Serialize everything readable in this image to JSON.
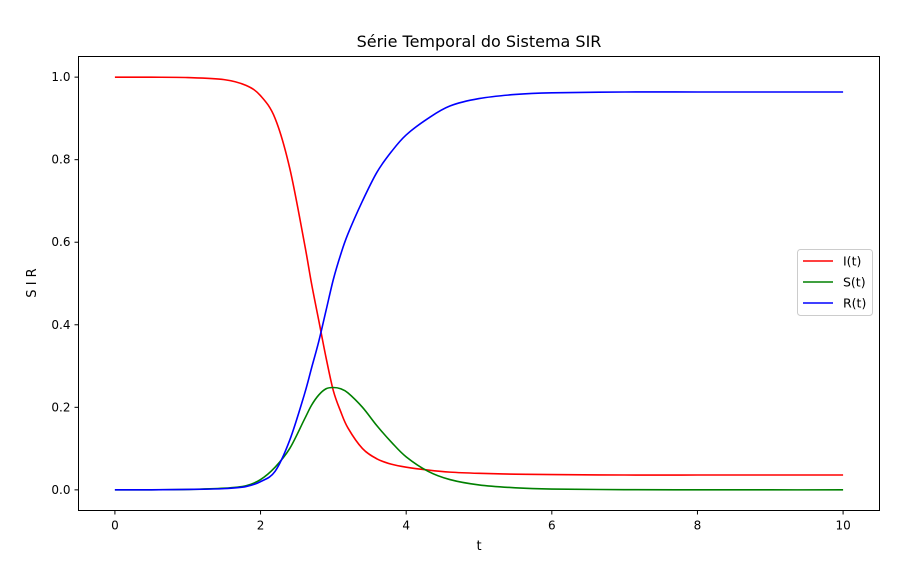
{
  "chart_data": {
    "type": "line",
    "title": "Série Temporal do Sistema SIR",
    "xlabel": "t",
    "ylabel": "S I R",
    "xlim": [
      -0.5,
      10.5
    ],
    "ylim": [
      -0.05,
      1.05
    ],
    "xticks": [
      0,
      2,
      4,
      6,
      8,
      10
    ],
    "xtick_labels": [
      "0",
      "2",
      "4",
      "6",
      "8",
      "10"
    ],
    "yticks": [
      0.0,
      0.2,
      0.4,
      0.6,
      0.8,
      1.0
    ],
    "ytick_labels": [
      "0.0",
      "0.2",
      "0.4",
      "0.6",
      "0.8",
      "1.0"
    ],
    "grid": false,
    "legend_position": "center-right",
    "x": [
      0,
      0.5,
      1,
      1.5,
      1.8,
      2,
      2.2,
      2.4,
      2.6,
      2.7,
      2.8,
      2.9,
      3,
      3.1,
      3.2,
      3.4,
      3.6,
      3.8,
      4,
      4.3,
      4.6,
      5,
      5.5,
      6,
      7,
      8,
      9,
      10
    ],
    "series": [
      {
        "name": "I(t)",
        "color": "#ff0000",
        "values": [
          1.0,
          0.9998,
          0.999,
          0.994,
          0.98,
          0.955,
          0.9,
          0.78,
          0.6,
          0.5,
          0.41,
          0.32,
          0.24,
          0.19,
          0.15,
          0.1,
          0.075,
          0.062,
          0.055,
          0.048,
          0.043,
          0.04,
          0.038,
          0.037,
          0.036,
          0.036,
          0.036,
          0.036
        ]
      },
      {
        "name": "S(t)",
        "color": "#008000",
        "values": [
          0.0,
          0.0002,
          0.001,
          0.004,
          0.01,
          0.025,
          0.055,
          0.1,
          0.17,
          0.205,
          0.23,
          0.245,
          0.248,
          0.245,
          0.235,
          0.2,
          0.155,
          0.115,
          0.08,
          0.045,
          0.025,
          0.012,
          0.005,
          0.002,
          0.0005,
          0.0001,
          0.0,
          0.0
        ]
      },
      {
        "name": "R(t)",
        "color": "#0000ff",
        "values": [
          0.0,
          0.0002,
          0.001,
          0.003,
          0.008,
          0.02,
          0.045,
          0.12,
          0.23,
          0.295,
          0.36,
          0.435,
          0.51,
          0.57,
          0.62,
          0.7,
          0.77,
          0.82,
          0.86,
          0.9,
          0.93,
          0.948,
          0.958,
          0.962,
          0.964,
          0.964,
          0.964,
          0.964
        ]
      }
    ]
  }
}
